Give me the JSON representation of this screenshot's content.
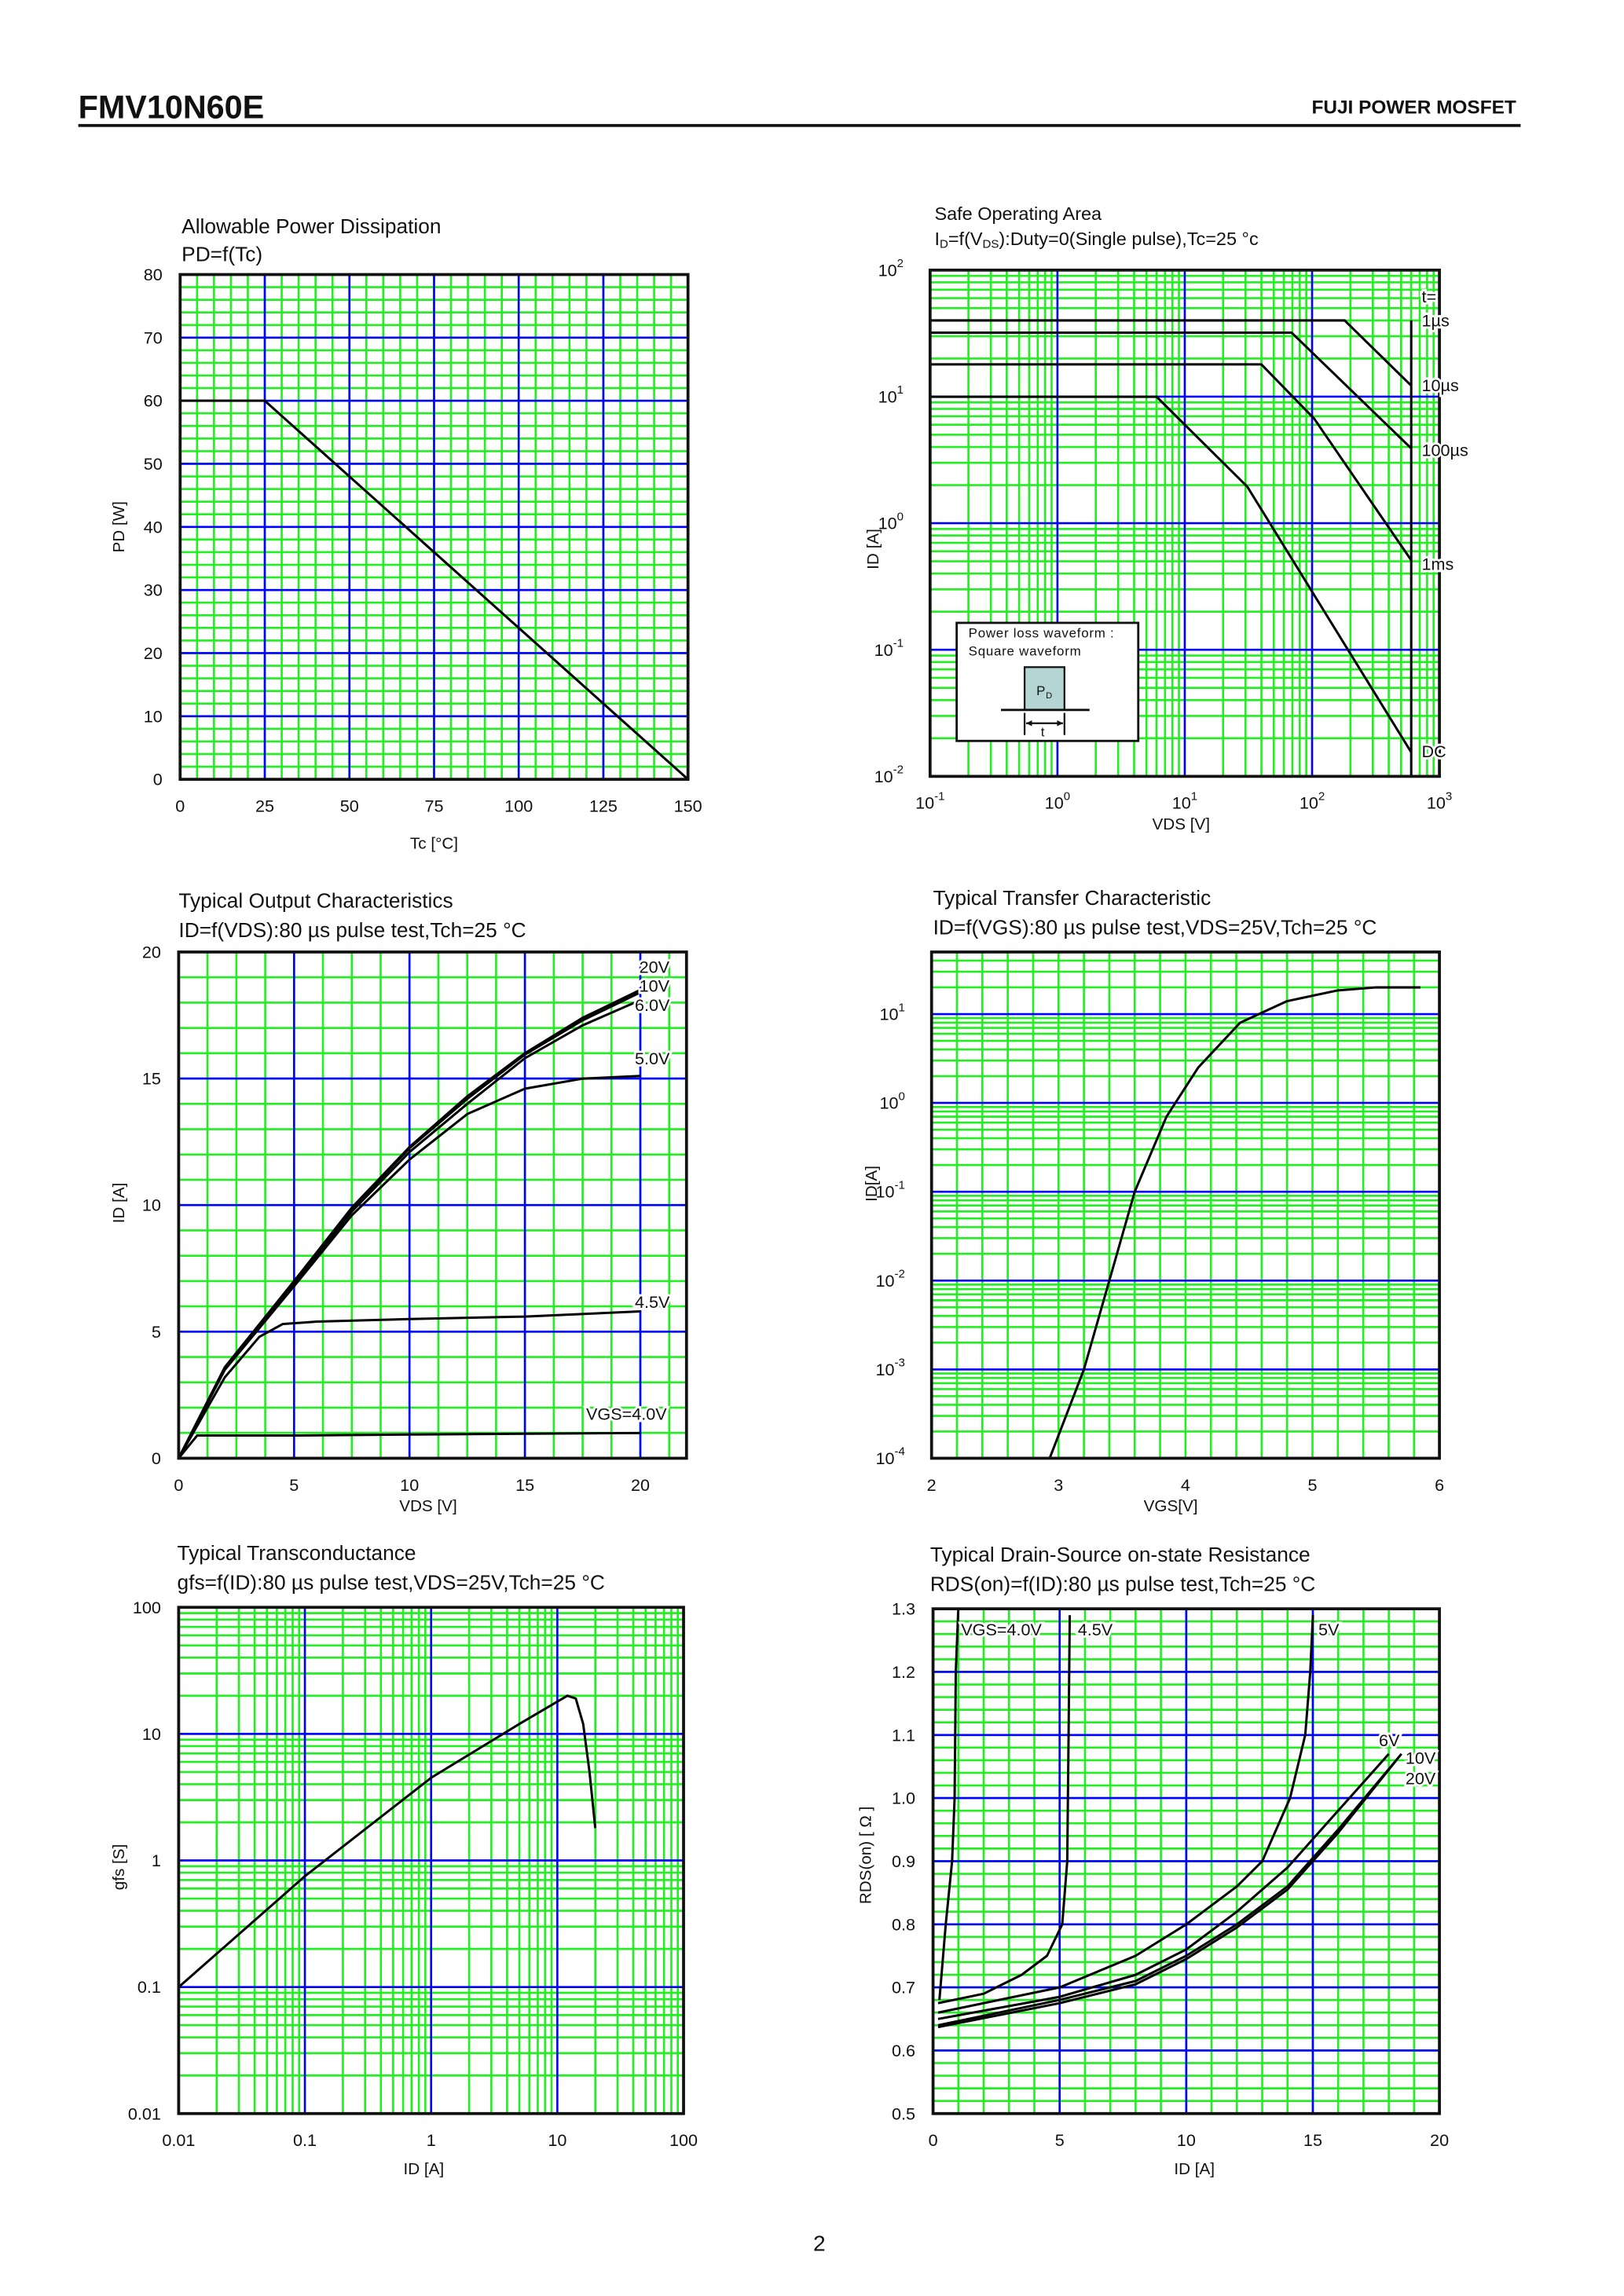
{
  "header": {
    "part_number": "FMV10N60E",
    "product_line": "FUJI POWER MOSFET"
  },
  "footer": {
    "page_number": "2"
  },
  "colors": {
    "minor_grid": "#22ee22",
    "major_grid": "#0000ff",
    "curve": "#000000",
    "inset_pulse": "#b5d5d5"
  },
  "chart_data": [
    {
      "type": "line",
      "title": "Allowable Power Dissipation",
      "subtitle": "PD=f(Tc)",
      "xlabel": "Tc [°C]",
      "ylabel": "PD [W]",
      "xlim": [
        0,
        150
      ],
      "ylim": [
        0,
        80
      ],
      "xscale": "linear",
      "yscale": "linear",
      "grid": true,
      "xticks": [
        {
          "v": 0,
          "t": "0"
        },
        {
          "v": 25,
          "t": "25"
        },
        {
          "v": 50,
          "t": "50"
        },
        {
          "v": 75,
          "t": "75"
        },
        {
          "v": 100,
          "t": "100"
        },
        {
          "v": 125,
          "t": "125"
        },
        {
          "v": 150,
          "t": "150"
        }
      ],
      "yticks": [
        {
          "v": 0,
          "t": "0"
        },
        {
          "v": 10,
          "t": "10"
        },
        {
          "v": 20,
          "t": "20"
        },
        {
          "v": 30,
          "t": "30"
        },
        {
          "v": 40,
          "t": "40"
        },
        {
          "v": 50,
          "t": "50"
        },
        {
          "v": 60,
          "t": "60"
        },
        {
          "v": 70,
          "t": "70"
        },
        {
          "v": 80,
          "t": "80"
        }
      ],
      "series": [
        {
          "points": [
            [
              0,
              60
            ],
            [
              25,
              60
            ],
            [
              150,
              0
            ]
          ]
        }
      ]
    },
    {
      "type": "line",
      "title": "Safe Operating Area",
      "subtitle_parts": [
        "I",
        "D",
        "=f(V",
        "DS",
        "):Duty=0(Single pulse),Tc=25 °c"
      ],
      "xlabel": "VDS [V]",
      "ylabel": "ID [A]",
      "xlim": [
        0.1,
        1000
      ],
      "ylim": [
        0.01,
        100
      ],
      "xscale": "log",
      "yscale": "log",
      "grid": true,
      "xticks": [
        {
          "v": 0.1,
          "t": "10",
          "e": "-1"
        },
        {
          "v": 1,
          "t": "10",
          "e": "0"
        },
        {
          "v": 10,
          "t": "10",
          "e": "1"
        },
        {
          "v": 100,
          "t": "10",
          "e": "2"
        },
        {
          "v": 1000,
          "t": "10",
          "e": "3"
        }
      ],
      "yticks": [
        {
          "v": 0.01,
          "t": "10",
          "e": "-2"
        },
        {
          "v": 0.1,
          "t": "10",
          "e": "-1"
        },
        {
          "v": 1,
          "t": "10",
          "e": "0"
        },
        {
          "v": 10,
          "t": "10",
          "e": "1"
        },
        {
          "v": 100,
          "t": "10",
          "e": "2"
        }
      ],
      "series": [
        {
          "points": [
            [
              0.1,
              40
            ],
            [
              180,
              40
            ],
            [
              600,
              12.2
            ]
          ]
        },
        {
          "points": [
            [
              0.1,
              32
            ],
            [
              69,
              32
            ],
            [
              600,
              3.9
            ]
          ]
        },
        {
          "points": [
            [
              0.1,
              18
            ],
            [
              40,
              18
            ],
            [
              104,
              6.7
            ],
            [
              600,
              0.51
            ]
          ]
        },
        {
          "points": [
            [
              0.1,
              10
            ],
            [
              6,
              10
            ],
            [
              31,
              1.94
            ],
            [
              600,
              0.0155
            ]
          ]
        },
        {
          "points": [
            [
              600,
              40
            ],
            [
              600,
              0.01
            ]
          ]
        }
      ],
      "annotations": [
        "t=",
        "1µs",
        "10µs",
        "100µs",
        "1ms",
        "DC"
      ],
      "inset": {
        "line1": "Power loss waveform :",
        "line2": "Square waveform",
        "pulse_label": "P",
        "pulse_sub": "D",
        "width_label": "t"
      }
    },
    {
      "type": "line",
      "title": "Typical Output Characteristics",
      "subtitle": "ID=f(VDS):80 µs pulse test,Tch=25 °C",
      "xlabel": "VDS [V]",
      "ylabel": "ID [A]",
      "xlim": [
        0,
        22
      ],
      "ylim": [
        0,
        20
      ],
      "xscale": "linear",
      "yscale": "linear",
      "grid": true,
      "xticks": [
        {
          "v": 0,
          "t": "0"
        },
        {
          "v": 5,
          "t": "5"
        },
        {
          "v": 10,
          "t": "10"
        },
        {
          "v": 15,
          "t": "15"
        },
        {
          "v": 20,
          "t": "20"
        }
      ],
      "yticks": [
        {
          "v": 0,
          "t": "0"
        },
        {
          "v": 5,
          "t": "5"
        },
        {
          "v": 10,
          "t": "10"
        },
        {
          "v": 15,
          "t": "15"
        },
        {
          "v": 20,
          "t": "20"
        }
      ],
      "series": [
        {
          "name": "20V",
          "points": [
            [
              0,
              0
            ],
            [
              2,
              3.6
            ],
            [
              5,
              7
            ],
            [
              7.5,
              9.9
            ],
            [
              10,
              12.3
            ],
            [
              12.5,
              14.3
            ],
            [
              15,
              16
            ],
            [
              17.5,
              17.4
            ],
            [
              20,
              18.5
            ]
          ]
        },
        {
          "name": "10V",
          "points": [
            [
              0,
              0
            ],
            [
              2,
              3.6
            ],
            [
              5,
              7
            ],
            [
              7.5,
              9.85
            ],
            [
              10,
              12.25
            ],
            [
              12.5,
              14.2
            ],
            [
              15,
              15.95
            ],
            [
              17.5,
              17.3
            ],
            [
              20,
              18.4
            ]
          ]
        },
        {
          "name": "6.0V",
          "points": [
            [
              0,
              0
            ],
            [
              2,
              3.55
            ],
            [
              5,
              6.9
            ],
            [
              7.5,
              9.75
            ],
            [
              10,
              12.1
            ],
            [
              12.5,
              14
            ],
            [
              15,
              15.8
            ],
            [
              17.5,
              17.1
            ],
            [
              20,
              18.1
            ]
          ]
        },
        {
          "name": "5.0V",
          "points": [
            [
              0,
              0
            ],
            [
              2,
              3.5
            ],
            [
              5,
              6.8
            ],
            [
              7.5,
              9.6
            ],
            [
              10,
              11.8
            ],
            [
              12.5,
              13.6
            ],
            [
              15,
              14.6
            ],
            [
              17.5,
              15
            ],
            [
              20,
              15.1
            ]
          ]
        },
        {
          "name": "4.5V",
          "points": [
            [
              0,
              0
            ],
            [
              2,
              3.2
            ],
            [
              3.5,
              4.8
            ],
            [
              4.5,
              5.3
            ],
            [
              6,
              5.4
            ],
            [
              10,
              5.5
            ],
            [
              15,
              5.6
            ],
            [
              20,
              5.8
            ]
          ]
        },
        {
          "name": "VGS=4.0V",
          "points": [
            [
              0,
              0
            ],
            [
              0.8,
              0.9
            ],
            [
              5,
              0.9
            ],
            [
              12,
              0.95
            ],
            [
              20,
              1.0
            ]
          ]
        }
      ]
    },
    {
      "type": "line",
      "title": "Typical Transfer Characteristic",
      "subtitle": "ID=f(VGS):80 µs pulse test,VDS=25V,Tch=25 °C",
      "xlabel": "VGS[V]",
      "ylabel": "ID[A]",
      "xlim": [
        2,
        6
      ],
      "ylim": [
        0.0001,
        50
      ],
      "xscale": "linear",
      "yscale": "log",
      "grid": true,
      "xticks": [
        {
          "v": 2,
          "t": "2"
        },
        {
          "v": 3,
          "t": "3"
        },
        {
          "v": 4,
          "t": "4"
        },
        {
          "v": 5,
          "t": "5"
        },
        {
          "v": 6,
          "t": "6"
        }
      ],
      "yticks": [
        {
          "v": 0.0001,
          "t": "10",
          "e": "-4"
        },
        {
          "v": 0.001,
          "t": "10",
          "e": "-3"
        },
        {
          "v": 0.01,
          "t": "10",
          "e": "-2"
        },
        {
          "v": 0.1,
          "t": "10",
          "e": "-1"
        },
        {
          "v": 1,
          "t": "10",
          "e": "0"
        },
        {
          "v": 10,
          "t": "10",
          "e": "1"
        }
      ],
      "series": [
        {
          "points": [
            [
              2.93,
              0.0001
            ],
            [
              3.2,
              0.001
            ],
            [
              3.4,
              0.01
            ],
            [
              3.6,
              0.1
            ],
            [
              3.85,
              0.7
            ],
            [
              4.1,
              2.5
            ],
            [
              4.43,
              8
            ],
            [
              4.8,
              14
            ],
            [
              5.2,
              18.5
            ],
            [
              5.5,
              20
            ],
            [
              5.85,
              20
            ]
          ]
        }
      ]
    },
    {
      "type": "line",
      "title": "Typical Transconductance",
      "subtitle": "gfs=f(ID):80 µs pulse test,VDS=25V,Tch=25  °C",
      "xlabel": "ID [A]",
      "ylabel": "gfs [S]",
      "xlim": [
        0.01,
        100
      ],
      "ylim": [
        0.01,
        100
      ],
      "xscale": "log",
      "yscale": "log",
      "grid": true,
      "xticks": [
        {
          "v": 0.01,
          "t": "0.01"
        },
        {
          "v": 0.1,
          "t": "0.1"
        },
        {
          "v": 1,
          "t": "1"
        },
        {
          "v": 10,
          "t": "10"
        },
        {
          "v": 100,
          "t": "100"
        }
      ],
      "yticks": [
        {
          "v": 0.01,
          "t": "0.01"
        },
        {
          "v": 0.1,
          "t": "0.1"
        },
        {
          "v": 1,
          "t": "1"
        },
        {
          "v": 10,
          "t": "10"
        },
        {
          "v": 100,
          "t": "100"
        }
      ],
      "series": [
        {
          "points": [
            [
              0.01,
              0.1
            ],
            [
              0.1,
              0.75
            ],
            [
              1,
              4.5
            ],
            [
              5,
              12
            ],
            [
              10,
              18
            ],
            [
              12,
              20
            ],
            [
              14,
              19
            ],
            [
              16,
              12
            ],
            [
              18,
              5
            ],
            [
              20,
              1.8
            ]
          ]
        }
      ]
    },
    {
      "type": "line",
      "title": "Typical Drain-Source on-state Resistance",
      "subtitle": "RDS(on)=f(ID):80  µs pulse test,Tch=25  °C",
      "xlabel": "ID [A]",
      "ylabel": "RDS(on) [ Ω ]",
      "xlim": [
        0,
        20
      ],
      "ylim": [
        0.5,
        1.3
      ],
      "xscale": "linear",
      "yscale": "linear",
      "grid": true,
      "xticks": [
        {
          "v": 0,
          "t": "0"
        },
        {
          "v": 5,
          "t": "5"
        },
        {
          "v": 10,
          "t": "10"
        },
        {
          "v": 15,
          "t": "15"
        },
        {
          "v": 20,
          "t": "20"
        }
      ],
      "yticks": [
        {
          "v": 0.5,
          "t": "0.5"
        },
        {
          "v": 0.6,
          "t": "0.6"
        },
        {
          "v": 0.7,
          "t": "0.7"
        },
        {
          "v": 0.8,
          "t": "0.8"
        },
        {
          "v": 0.9,
          "t": "0.9"
        },
        {
          "v": 1.0,
          "t": "1.0"
        },
        {
          "v": 1.1,
          "t": "1.1"
        },
        {
          "v": 1.2,
          "t": "1.2"
        },
        {
          "v": 1.3,
          "t": "1.3"
        }
      ],
      "series": [
        {
          "name": "VGS=4.0V",
          "points": [
            [
              0.25,
              0.68
            ],
            [
              0.5,
              0.8
            ],
            [
              0.75,
              0.9
            ],
            [
              0.85,
              1.0
            ],
            [
              0.9,
              1.2
            ],
            [
              1.0,
              1.3
            ]
          ]
        },
        {
          "name": "4.5V",
          "points": [
            [
              0.2,
              0.675
            ],
            [
              2,
              0.69
            ],
            [
              3.5,
              0.72
            ],
            [
              4.5,
              0.75
            ],
            [
              5.1,
              0.8
            ],
            [
              5.3,
              0.9
            ],
            [
              5.35,
              1.1
            ],
            [
              5.4,
              1.29
            ]
          ]
        },
        {
          "name": "5V",
          "points": [
            [
              0.2,
              0.66
            ],
            [
              5,
              0.7
            ],
            [
              8,
              0.75
            ],
            [
              10,
              0.8
            ],
            [
              12,
              0.86
            ],
            [
              13,
              0.9
            ],
            [
              14.1,
              1.0
            ],
            [
              14.7,
              1.1
            ],
            [
              14.9,
              1.2
            ],
            [
              15,
              1.29
            ]
          ]
        },
        {
          "name": "6V",
          "points": [
            [
              0.2,
              0.65
            ],
            [
              5,
              0.685
            ],
            [
              8,
              0.72
            ],
            [
              10,
              0.76
            ],
            [
              12,
              0.82
            ],
            [
              14,
              0.89
            ],
            [
              16,
              0.98
            ],
            [
              18,
              1.07
            ]
          ]
        },
        {
          "name": "10V",
          "points": [
            [
              0.2,
              0.64
            ],
            [
              5,
              0.68
            ],
            [
              8,
              0.71
            ],
            [
              10,
              0.75
            ],
            [
              12,
              0.8
            ],
            [
              14,
              0.86
            ],
            [
              16,
              0.95
            ],
            [
              18.5,
              1.07
            ]
          ]
        },
        {
          "name": "20V",
          "points": [
            [
              0.2,
              0.637
            ],
            [
              5,
              0.675
            ],
            [
              8,
              0.705
            ],
            [
              10,
              0.745
            ],
            [
              12,
              0.795
            ],
            [
              14,
              0.855
            ],
            [
              16,
              0.945
            ],
            [
              18.3,
              1.06
            ]
          ]
        }
      ]
    }
  ]
}
